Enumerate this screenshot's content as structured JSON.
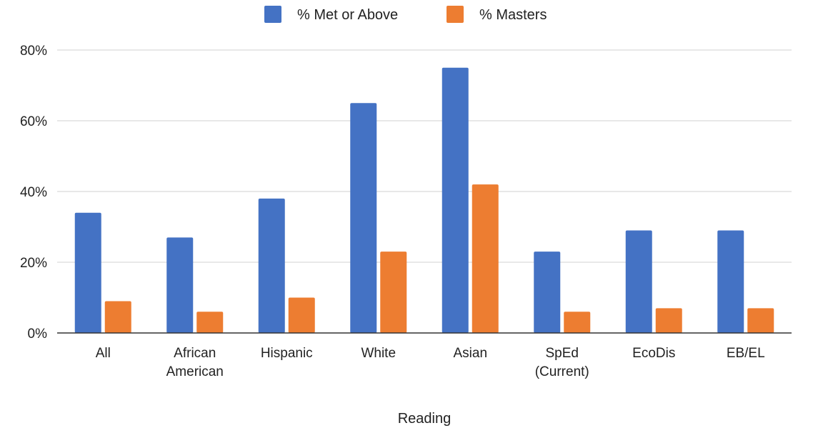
{
  "chart_data": {
    "type": "bar",
    "title": "",
    "xlabel": "Reading",
    "ylabel": "",
    "ylim": [
      0,
      80
    ],
    "yticks": [
      0,
      20,
      40,
      60,
      80
    ],
    "ytick_labels": [
      "0%",
      "20%",
      "40%",
      "60%",
      "80%"
    ],
    "grid": true,
    "legend_position": "top",
    "categories": [
      [
        "All"
      ],
      [
        "African",
        "American"
      ],
      [
        "Hispanic"
      ],
      [
        "White"
      ],
      [
        "Asian"
      ],
      [
        "SpEd",
        "(Current)"
      ],
      [
        "EcoDis"
      ],
      [
        "EB/EL"
      ]
    ],
    "series": [
      {
        "name": "% Met or Above",
        "color": "#4472C4",
        "values": [
          34,
          27,
          38,
          65,
          75,
          23,
          29,
          29
        ]
      },
      {
        "name": "% Masters",
        "color": "#ED7D31",
        "values": [
          9,
          6,
          10,
          23,
          42,
          6,
          7,
          7
        ]
      }
    ]
  }
}
